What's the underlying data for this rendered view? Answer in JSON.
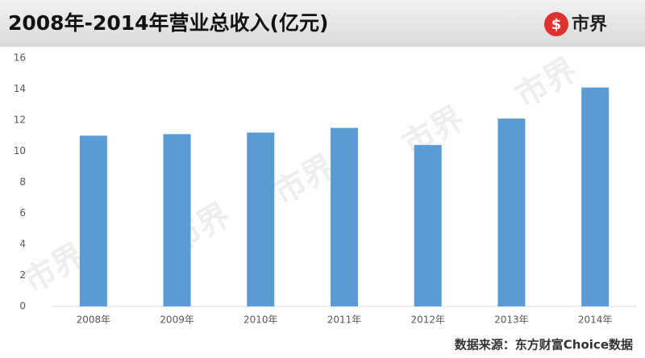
{
  "chart_data": {
    "type": "bar",
    "title": "2008年-2014年营业总收入(亿元)",
    "brand": "市界",
    "source": "数据来源：东方财富Choice数据",
    "categories": [
      "2008年",
      "2009年",
      "2010年",
      "2011年",
      "2012年",
      "2013年",
      "2014年"
    ],
    "values": [
      11.0,
      11.1,
      11.2,
      11.5,
      10.4,
      12.1,
      14.1
    ],
    "color": "#5b9bd5",
    "ylim": [
      0,
      16
    ],
    "yticks": [
      0,
      2,
      4,
      6,
      8,
      10,
      12,
      14,
      16
    ],
    "grid": false
  }
}
